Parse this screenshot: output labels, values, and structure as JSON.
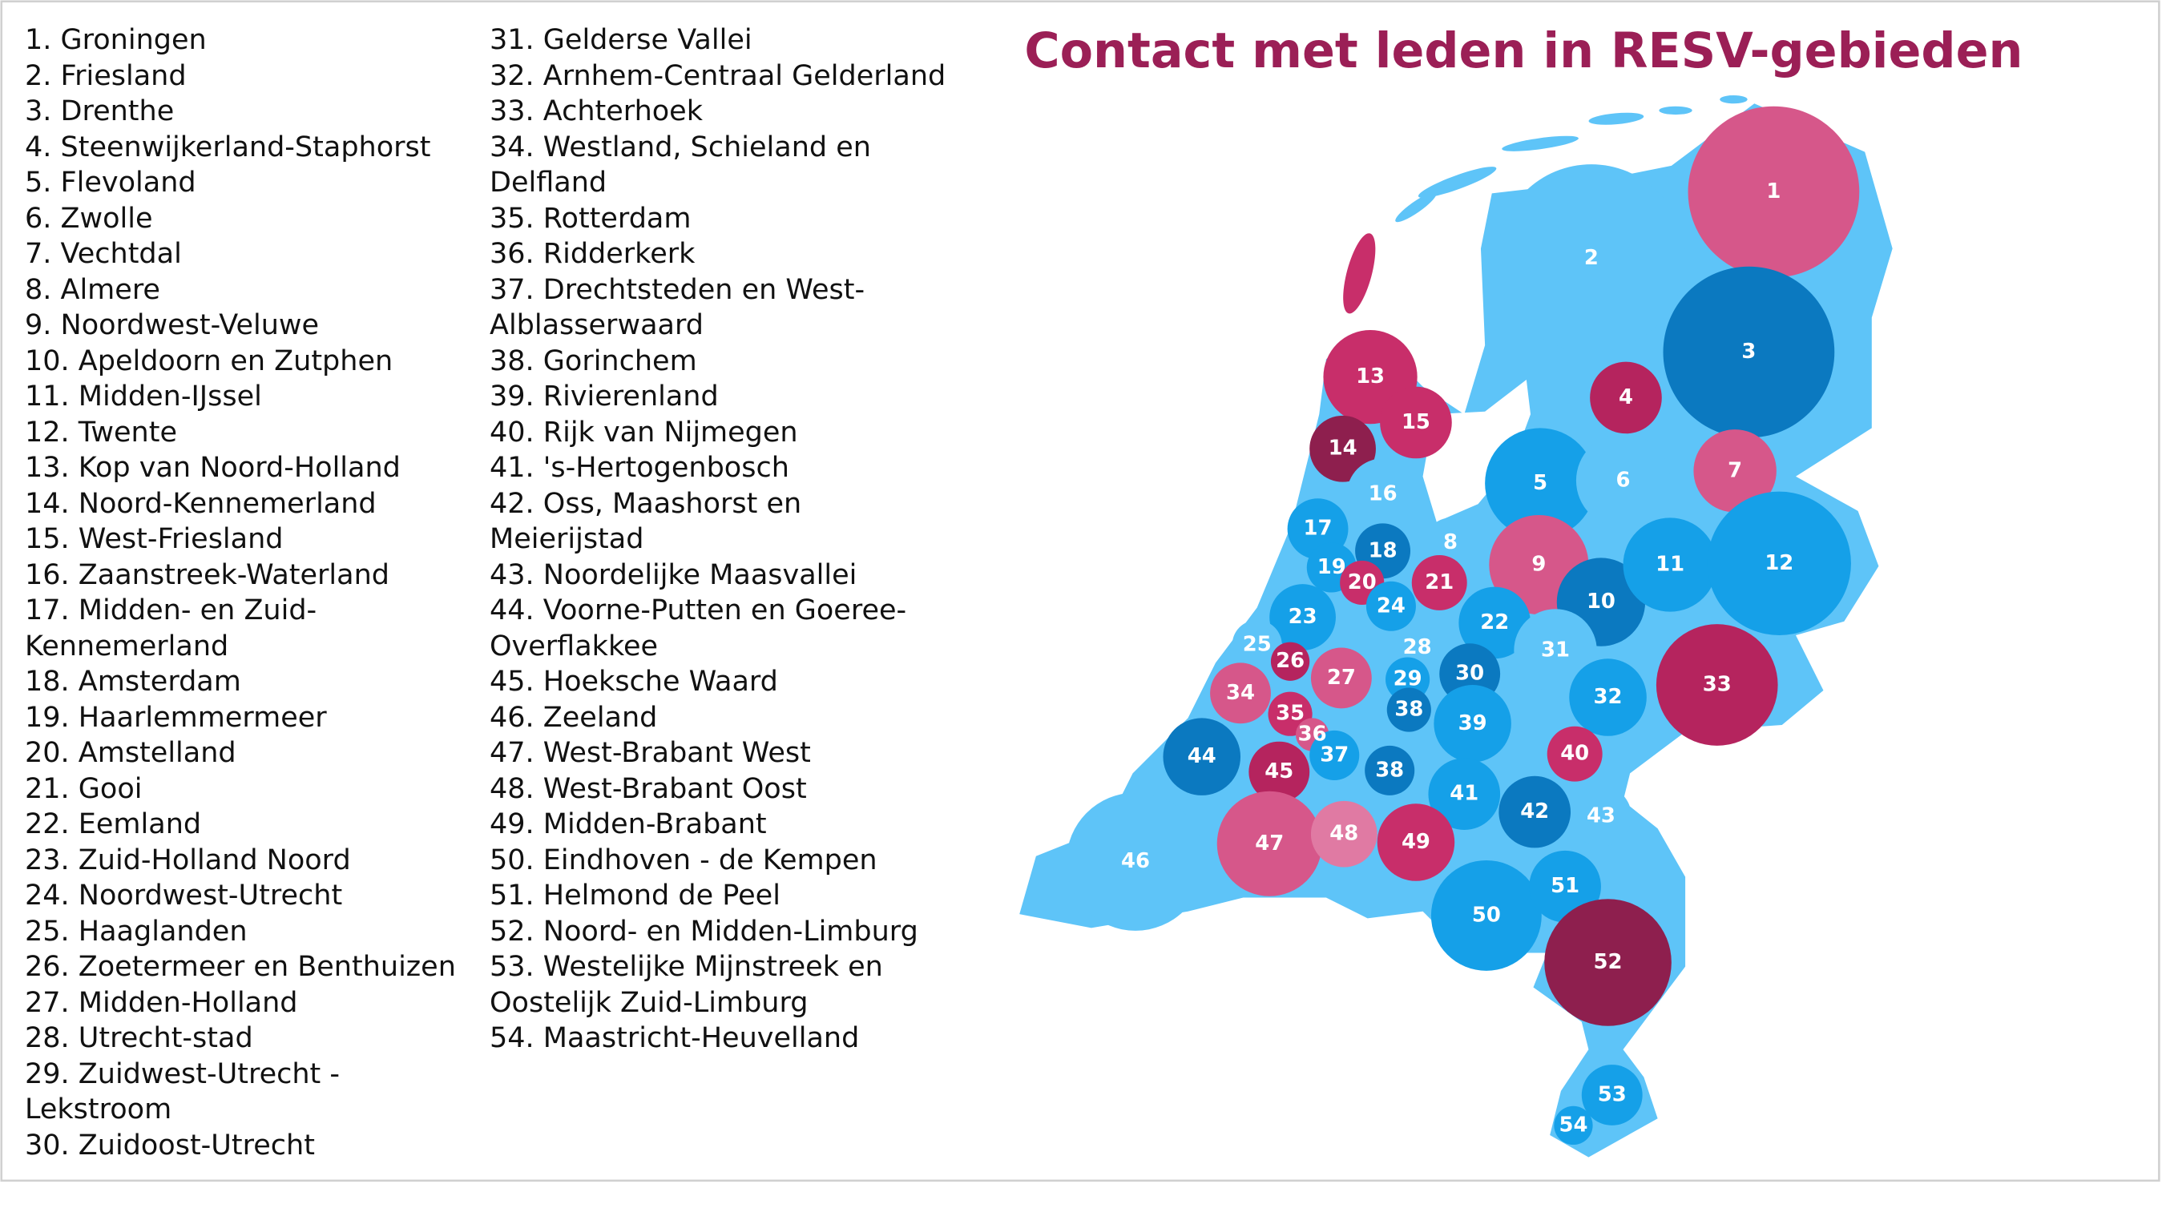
{
  "title": "Contact met leden in RESV-gebieden",
  "legend": {
    "columns": [
      [
        "1. Groningen",
        "2. Friesland",
        "3. Drenthe",
        "4. Steenwijkerland-Staphorst",
        "5. Flevoland",
        "6. Zwolle",
        "7. Vechtdal",
        "8. Almere",
        "9. Noordwest-Veluwe",
        "10. Apeldoorn en Zutphen",
        "11. Midden-IJssel",
        "12. Twente",
        "13. Kop van Noord-Holland",
        "14. Noord-Kennemerland",
        "15. West-Friesland",
        "16. Zaanstreek-Waterland",
        "17. Midden- en Zuid-Kennemerland",
        "18. Amsterdam",
        "19. Haarlemmermeer",
        "20. Amstelland",
        "21. Gooi",
        "22. Eemland",
        "23. Zuid-Holland Noord",
        "24. Noordwest-Utrecht",
        "25. Haaglanden",
        "26. Zoetermeer en Benthuizen",
        "27. Midden-Holland",
        "28. Utrecht-stad",
        "29. Zuidwest-Utrecht - Lekstroom",
        "30. Zuidoost-Utrecht"
      ],
      [
        "31. Gelderse Vallei",
        "32. Arnhem-Centraal Gelderland",
        "33. Achterhoek",
        "34. Westland, Schieland en Delfland",
        "35. Rotterdam",
        "36. Ridderkerk",
        "37. Drechtsteden en West-Alblasserwaard",
        "38. Gorinchem",
        "39. Rivierenland",
        "40. Rijk van Nijmegen",
        "41. 's-Hertogenbosch",
        "42. Oss, Maashorst en Meierijstad",
        "43. Noordelijke Maasvallei",
        "44. Voorne-Putten en Goeree-Overflakkee",
        "45. Hoeksche Waard",
        "46. Zeeland",
        "47. West-Brabant West",
        "48. West-Brabant Oost",
        "49. Midden-Brabant",
        "50. Eindhoven - de Kempen",
        "51. Helmond de Peel",
        "52. Noord- en Midden-Limburg",
        "53. Westelijke Mijnstreek en Oostelijk Zuid-Limburg",
        "54. Maastricht-Heuvelland"
      ]
    ]
  },
  "map": {
    "land_color": "#5ec4f8",
    "regions": [
      {
        "label": "1",
        "color": "#d6578a"
      },
      {
        "label": "2",
        "color": "#5ec4f8"
      },
      {
        "label": "3",
        "color": "#0b79c0"
      },
      {
        "label": "4",
        "color": "#b5245e"
      },
      {
        "label": "5",
        "color": "#15a0e8"
      },
      {
        "label": "6",
        "color": "#5ec4f8"
      },
      {
        "label": "7",
        "color": "#d6578a"
      },
      {
        "label": "8",
        "color": "#5ec4f8"
      },
      {
        "label": "9",
        "color": "#d6578a"
      },
      {
        "label": "10",
        "color": "#0b79c0"
      },
      {
        "label": "11",
        "color": "#15a0e8"
      },
      {
        "label": "12",
        "color": "#15a0e8"
      },
      {
        "label": "13",
        "color": "#c82e6a"
      },
      {
        "label": "14",
        "color": "#8e1f4e"
      },
      {
        "label": "15",
        "color": "#c82e6a"
      },
      {
        "label": "16",
        "color": "#5ec4f8"
      },
      {
        "label": "17",
        "color": "#15a0e8"
      },
      {
        "label": "18",
        "color": "#0b79c0"
      },
      {
        "label": "19",
        "color": "#15a0e8"
      },
      {
        "label": "20",
        "color": "#c82e6a"
      },
      {
        "label": "21",
        "color": "#c82e6a"
      },
      {
        "label": "22",
        "color": "#15a0e8"
      },
      {
        "label": "23",
        "color": "#15a0e8"
      },
      {
        "label": "24",
        "color": "#15a0e8"
      },
      {
        "label": "25",
        "color": "#5ec4f8"
      },
      {
        "label": "26",
        "color": "#b5245e"
      },
      {
        "label": "27",
        "color": "#d6578a"
      },
      {
        "label": "28",
        "color": "#5ec4f8"
      },
      {
        "label": "29",
        "color": "#15a0e8"
      },
      {
        "label": "30",
        "color": "#0b79c0"
      },
      {
        "label": "31",
        "color": "#5ec4f8"
      },
      {
        "label": "32",
        "color": "#15a0e8"
      },
      {
        "label": "33",
        "color": "#b5245e"
      },
      {
        "label": "34",
        "color": "#d6578a"
      },
      {
        "label": "35",
        "color": "#c82e6a"
      },
      {
        "label": "36",
        "color": "#d6578a"
      },
      {
        "label": "37",
        "color": "#15a0e8"
      },
      {
        "label": "38",
        "color": "#0b79c0"
      },
      {
        "label": "38",
        "color": "#0b79c0"
      },
      {
        "label": "39",
        "color": "#15a0e8"
      },
      {
        "label": "40",
        "color": "#c82e6a"
      },
      {
        "label": "41",
        "color": "#15a0e8"
      },
      {
        "label": "42",
        "color": "#0b79c0"
      },
      {
        "label": "43",
        "color": "#5ec4f8"
      },
      {
        "label": "44",
        "color": "#0b79c0"
      },
      {
        "label": "45",
        "color": "#b5245e"
      },
      {
        "label": "46",
        "color": "#5ec4f8"
      },
      {
        "label": "47",
        "color": "#d6578a"
      },
      {
        "label": "48",
        "color": "#e07aa3"
      },
      {
        "label": "49",
        "color": "#c82e6a"
      },
      {
        "label": "50",
        "color": "#15a0e8"
      },
      {
        "label": "51",
        "color": "#15a0e8"
      },
      {
        "label": "52",
        "color": "#8e1f4e"
      },
      {
        "label": "53",
        "color": "#15a0e8"
      },
      {
        "label": "54",
        "color": "#15a0e8"
      }
    ]
  }
}
